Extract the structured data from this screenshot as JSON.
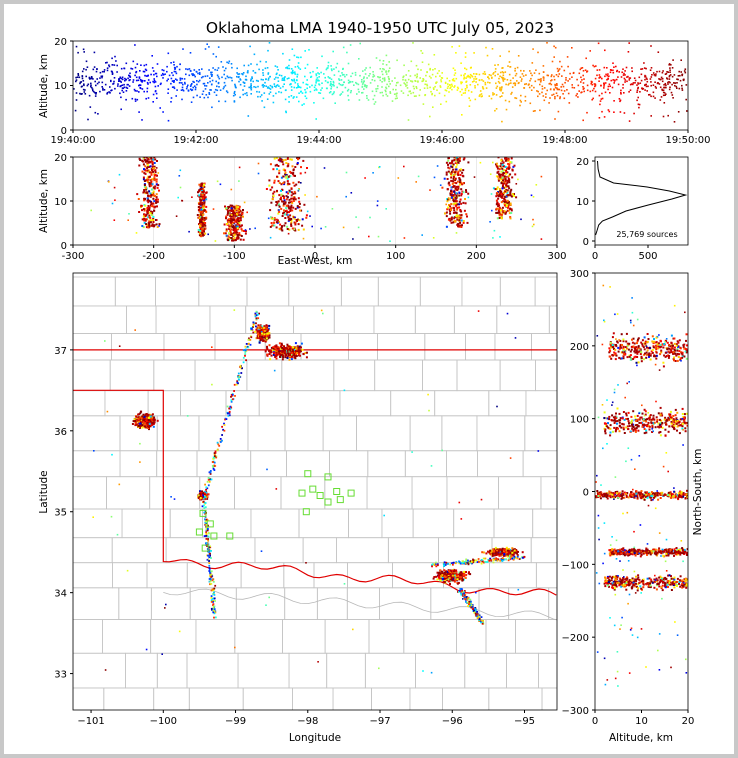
{
  "chart_data": [
    {
      "id": "time-height",
      "type": "scatter",
      "title": "Oklahoma LMA 1940-1950 UTC July 05, 2023",
      "ylabel": "Altitude, km",
      "xlabel": "",
      "ylim": [
        0,
        20
      ],
      "y_ticks": [
        "0",
        "10",
        "20"
      ],
      "x_ticks": [
        "19:40:00",
        "19:42:00",
        "19:44:00",
        "19:46:00",
        "19:48:00",
        "19:50:00"
      ],
      "x_tick_minutes": [
        0,
        2,
        4,
        6,
        8,
        10
      ],
      "xlim_minutes": [
        0,
        10
      ],
      "colormap": "jet (time-colored)",
      "description_points": "dense sources 2-20 km throughout the 10-minute window"
    },
    {
      "id": "east-west-altitude",
      "type": "scatter",
      "xlabel": "East-West, km",
      "ylabel": "Altitude, km",
      "xlim": [
        -300,
        300
      ],
      "ylim": [
        0,
        20
      ],
      "x_ticks": [
        "-300",
        "-200",
        "-100",
        "0",
        "100",
        "200",
        "300"
      ],
      "x_tick_values": [
        -300,
        -200,
        -100,
        0,
        100,
        200,
        300
      ],
      "y_ticks": [
        "0",
        "10",
        "20"
      ],
      "clusters_km": [
        {
          "x": -205,
          "width": 30,
          "zmin": 4,
          "zmax": 20
        },
        {
          "x": -140,
          "width": 12,
          "zmin": 2,
          "zmax": 14
        },
        {
          "x": -100,
          "width": 30,
          "zmin": 1,
          "zmax": 9
        },
        {
          "x": -35,
          "width": 55,
          "zmin": 3,
          "zmax": 20
        },
        {
          "x": 175,
          "width": 35,
          "zmin": 4,
          "zmax": 20
        },
        {
          "x": 235,
          "width": 30,
          "zmin": 6,
          "zmax": 20
        }
      ]
    },
    {
      "id": "altitude-histogram",
      "type": "line",
      "xlim": [
        0,
        750
      ],
      "ylim": [
        0,
        20
      ],
      "x_ticks": [
        "0",
        "500"
      ],
      "x_tick_values": [
        0,
        500
      ],
      "y_ticks": [
        "0",
        "10",
        "20"
      ],
      "annotation": "25,769 sources",
      "profile": [
        {
          "alt": 20,
          "count": 20
        },
        {
          "alt": 18,
          "count": 25
        },
        {
          "alt": 16,
          "count": 40
        },
        {
          "alt": 14.5,
          "count": 150
        },
        {
          "alt": 13.5,
          "count": 420
        },
        {
          "alt": 12.5,
          "count": 600
        },
        {
          "alt": 11.5,
          "count": 730
        },
        {
          "alt": 10.5,
          "count": 620
        },
        {
          "alt": 9,
          "count": 430
        },
        {
          "alt": 7.5,
          "count": 250
        },
        {
          "alt": 6,
          "count": 140
        },
        {
          "alt": 5,
          "count": 60
        },
        {
          "alt": 4,
          "count": 30
        },
        {
          "alt": 2.5,
          "count": 15
        },
        {
          "alt": 1.5,
          "count": 5
        }
      ]
    },
    {
      "id": "plan-view-map",
      "type": "scatter",
      "xlabel": "Longitude",
      "ylabel": "Latitude",
      "xlim": [
        -101.25,
        -94.55
      ],
      "ylim": [
        32.55,
        37.95
      ],
      "x_ticks": [
        "−101",
        "−100",
        "−99",
        "−98",
        "−97",
        "−96",
        "−95"
      ],
      "x_tick_values": [
        -101,
        -100,
        -99,
        -98,
        -97,
        -96,
        -95
      ],
      "y_ticks": [
        "33",
        "34",
        "35",
        "36",
        "37"
      ],
      "y_tick_values": [
        33,
        34,
        35,
        36,
        37
      ],
      "stations_lonlat": [
        [
          -98.0,
          35.47
        ],
        [
          -97.72,
          35.43
        ],
        [
          -98.08,
          35.23
        ],
        [
          -97.93,
          35.28
        ],
        [
          -97.83,
          35.2
        ],
        [
          -97.6,
          35.25
        ],
        [
          -97.4,
          35.23
        ],
        [
          -97.55,
          35.15
        ],
        [
          -97.72,
          35.12
        ],
        [
          -98.02,
          35.0
        ],
        [
          -99.45,
          34.98
        ],
        [
          -99.35,
          34.85
        ],
        [
          -99.5,
          34.75
        ],
        [
          -99.3,
          34.7
        ],
        [
          -99.08,
          34.7
        ],
        [
          -99.42,
          34.55
        ]
      ],
      "cells_lonlat": [
        {
          "lon": -98.3,
          "lat": 36.98,
          "rx": 0.35,
          "ry": 0.12
        },
        {
          "lon": -98.62,
          "lat": 37.2,
          "rx": 0.12,
          "ry": 0.12
        },
        {
          "lon": -100.25,
          "lat": 36.12,
          "rx": 0.2,
          "ry": 0.12
        },
        {
          "lon": -99.45,
          "lat": 35.2,
          "rx": 0.08,
          "ry": 0.06
        },
        {
          "lon": -96.0,
          "lat": 34.2,
          "rx": 0.3,
          "ry": 0.1
        },
        {
          "lon": -95.3,
          "lat": 34.5,
          "rx": 0.3,
          "ry": 0.06
        }
      ]
    },
    {
      "id": "north-south-altitude",
      "type": "scatter",
      "xlabel": "Altitude, km",
      "ylabel": "North-South, km",
      "xlim": [
        0,
        20
      ],
      "ylim": [
        -300,
        300
      ],
      "x_ticks": [
        "0",
        "10",
        "20"
      ],
      "x_tick_values": [
        0,
        10,
        20
      ],
      "y_ticks": [
        "−300",
        "−200",
        "−100",
        "0",
        "100",
        "200",
        "300"
      ],
      "y_tick_values": [
        -300,
        -200,
        -100,
        0,
        100,
        200,
        300
      ],
      "clusters_km": [
        {
          "y": 195,
          "height": 45,
          "zmin": 3,
          "zmax": 20
        },
        {
          "y": 95,
          "height": 40,
          "zmin": 2,
          "zmax": 20
        },
        {
          "y": -5,
          "height": 12,
          "zmin": 0,
          "zmax": 20
        },
        {
          "y": -83,
          "height": 12,
          "zmin": 3,
          "zmax": 20
        },
        {
          "y": -125,
          "height": 22,
          "zmin": 2,
          "zmax": 20
        }
      ]
    }
  ]
}
